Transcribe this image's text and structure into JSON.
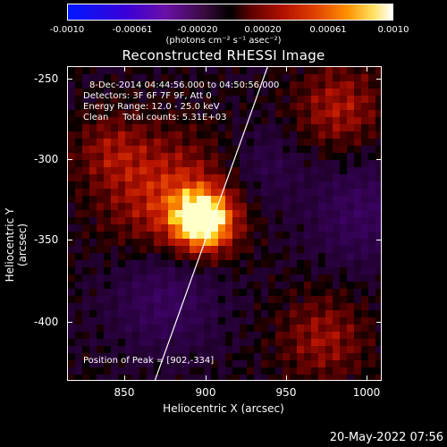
{
  "colorbar": {
    "ticks": [
      "-0.0010",
      "-0.00061",
      "-0.00020",
      "0.00020",
      "0.00061",
      "0.0010"
    ],
    "units": "(photons cm⁻² s⁻¹ asec⁻²)"
  },
  "title": "Reconstructed RHESSI Image",
  "annotations": {
    "time_range": "8-Dec-2014 04:44:56.000 to 04:50:56.000",
    "detectors": "Detectors: 3F 6F 7F 9F, Att 0",
    "energy": "Energy Range: 12.0 - 25.0 keV",
    "clean": "Clean     Total counts: 5.31E+03",
    "peak": "Position of Peak = [902,-334]"
  },
  "axes": {
    "xlabel": "Heliocentric X (arcsec)",
    "ylabel": "Heliocentric Y (arcsec)",
    "xticks": [
      "850",
      "900",
      "950",
      "1000"
    ],
    "yticks": [
      "-250",
      "-300",
      "-350",
      "-400"
    ],
    "xlim": [
      815,
      1010
    ],
    "ylim": [
      -435,
      -240
    ]
  },
  "timestamp": "20-May-2022 07:56",
  "colors": {
    "negative": "#3000c8",
    "zero": "#000000",
    "positive": "#ffe000",
    "limb": "#ffffff"
  }
}
